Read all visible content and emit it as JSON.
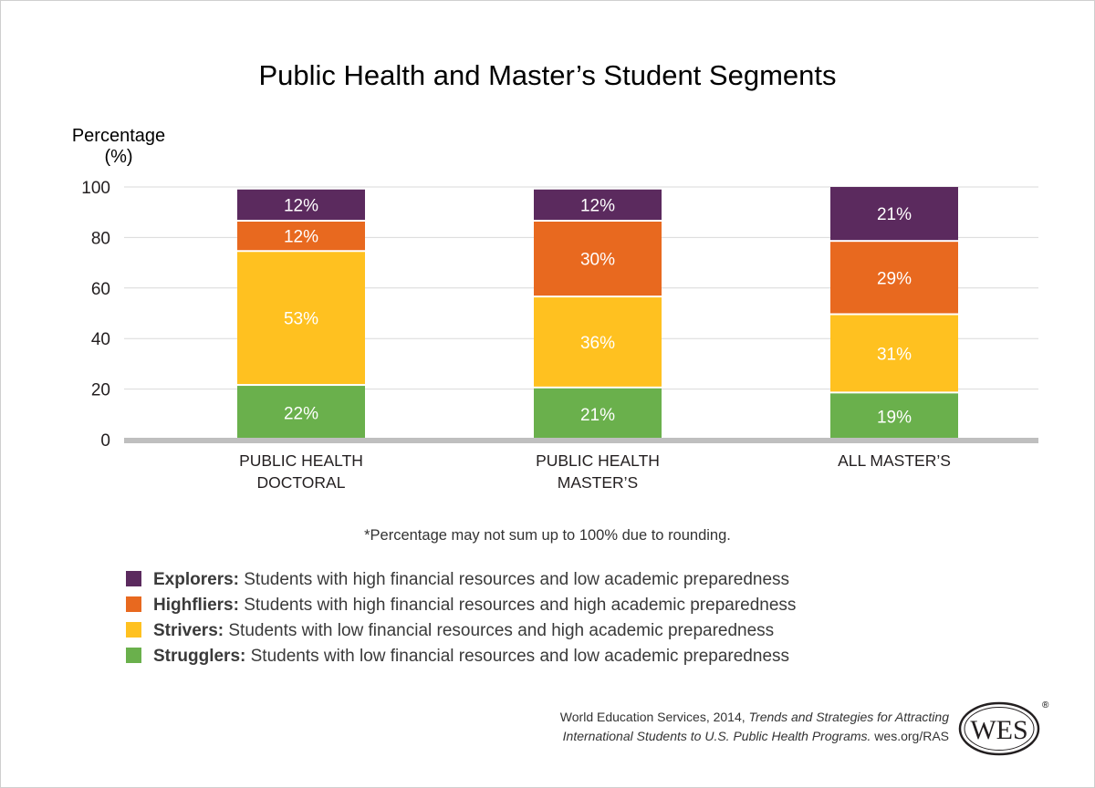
{
  "colors": {
    "explorers": "#5b2a5e",
    "highfliers": "#e8691f",
    "strivers": "#ffc120",
    "strugglers": "#6ab04c",
    "grid": "#d9d9d9",
    "axis": "#bfbfbf"
  },
  "chart_data": {
    "type": "bar",
    "stacked": true,
    "title": "Public Health and Master’s Student Segments",
    "ylabel": [
      "Percentage",
      "(%)"
    ],
    "xlabel": "",
    "ylim": [
      0,
      100
    ],
    "yticks": [
      "0",
      "20",
      "40",
      "60",
      "80",
      "100"
    ],
    "grid": true,
    "categories": [
      [
        "PUBLIC HEALTH",
        "DOCTORAL"
      ],
      [
        "PUBLIC HEALTH",
        "MASTER’S"
      ],
      [
        "ALL MASTER’S"
      ]
    ],
    "series": [
      {
        "name": "Strugglers",
        "color_key": "strugglers",
        "values": [
          22,
          21,
          19
        ],
        "labels": [
          "22%",
          "21%",
          "19%"
        ]
      },
      {
        "name": "Strivers",
        "color_key": "strivers",
        "values": [
          53,
          36,
          31
        ],
        "labels": [
          "53%",
          "36%",
          "31%"
        ]
      },
      {
        "name": "Highfliers",
        "color_key": "highfliers",
        "values": [
          12,
          30,
          29
        ],
        "labels": [
          "12%",
          "30%",
          "29%"
        ]
      },
      {
        "name": "Explorers",
        "color_key": "explorers",
        "values": [
          12,
          12,
          21
        ],
        "labels": [
          "12%",
          "12%",
          "21%"
        ]
      }
    ]
  },
  "footnote": "*Percentage may not sum up to 100% due to rounding.",
  "legend": [
    {
      "name": "Explorers:",
      "desc": " Students with high financial resources and low academic preparedness",
      "color_key": "explorers"
    },
    {
      "name": "Highfliers:",
      "desc": " Students with high financial resources and high academic preparedness",
      "color_key": "highfliers"
    },
    {
      "name": "Strivers:",
      "desc": " Students with low financial resources and high academic preparedness",
      "color_key": "strivers"
    },
    {
      "name": "Strugglers:",
      "desc": " Students with low financial resources and low academic preparedness",
      "color_key": "strugglers"
    }
  ],
  "source": {
    "line1_plain": "World Education Services, 2014, ",
    "line1_italic": "Trends and Strategies for Attracting",
    "line2_italic": "International Students to U.S. Public Health Programs.",
    "line2_plain": " wes.org/RAS"
  },
  "logo": {
    "text": "WES",
    "icon": "wes-logo",
    "mark": "®"
  }
}
